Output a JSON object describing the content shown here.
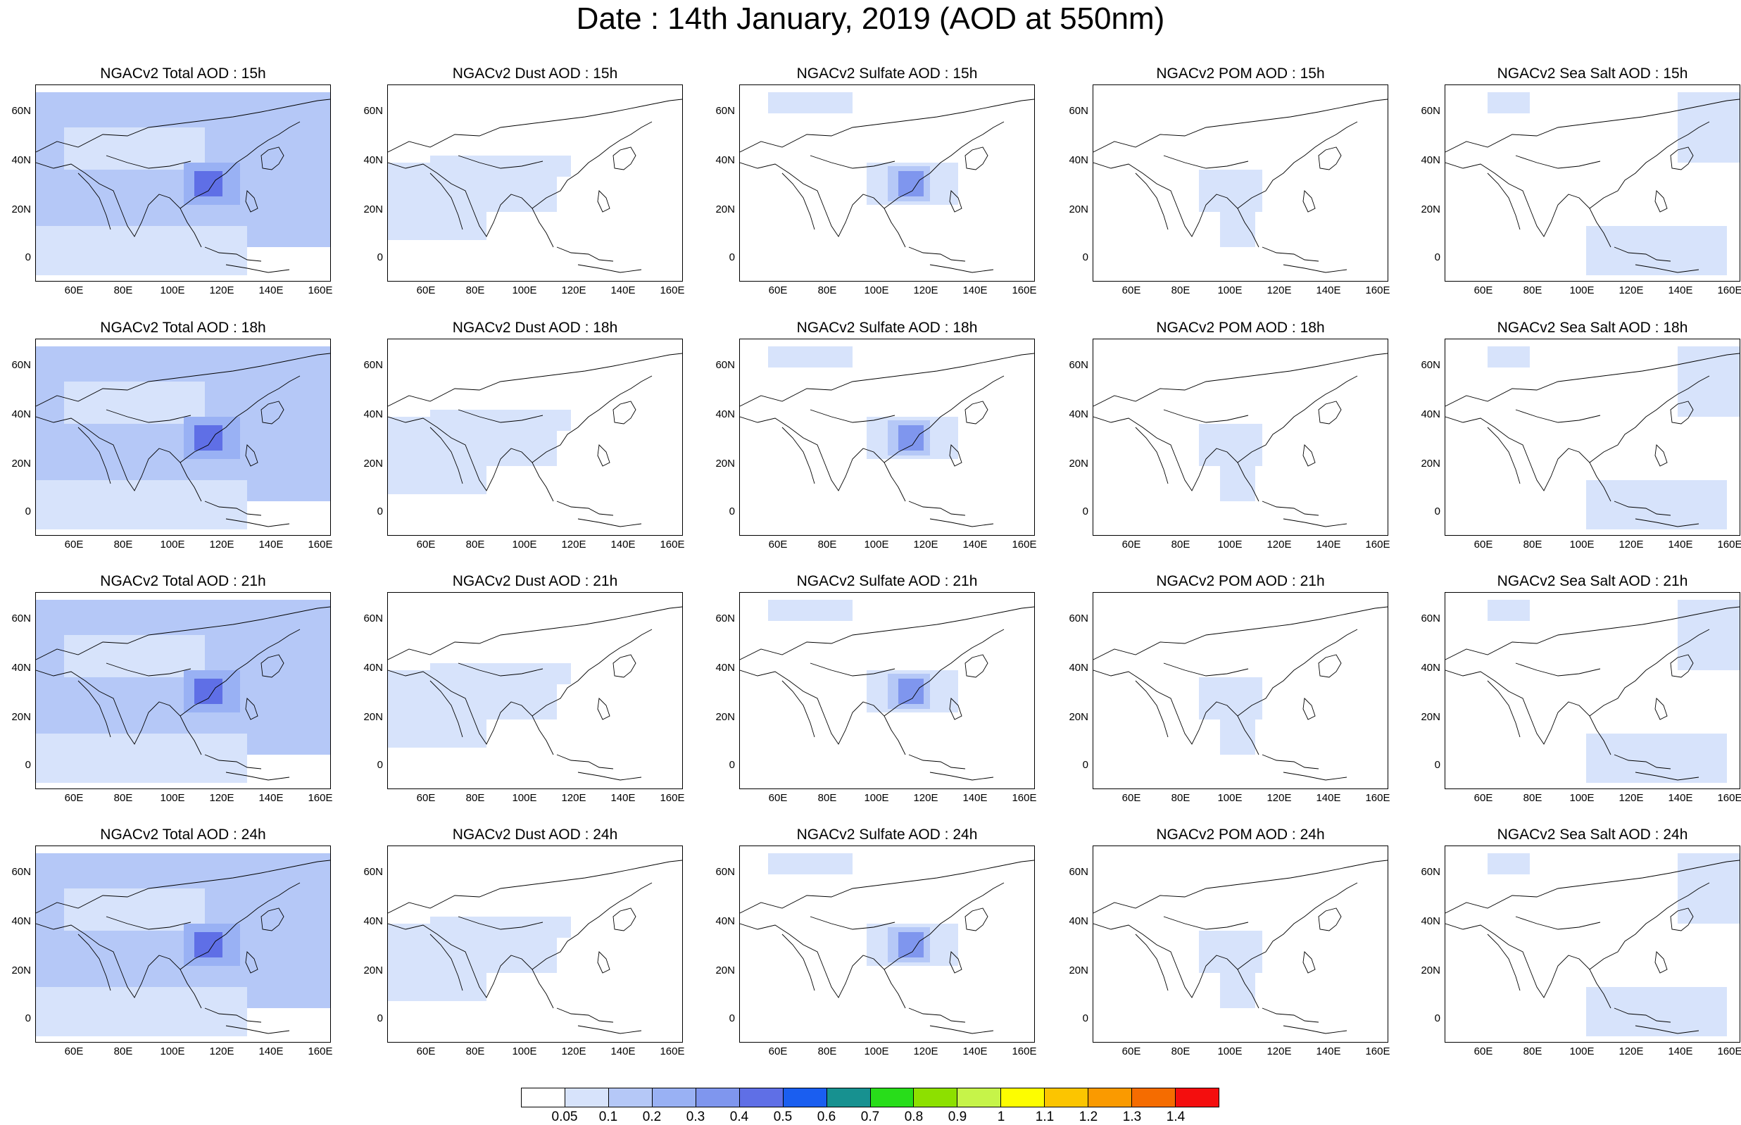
{
  "title": "Date : 14th January, 2019 (AOD at 550nm)",
  "lat_ticks": [
    "60N",
    "40N",
    "20N",
    "0"
  ],
  "lon_ticks": [
    "60E",
    "80E",
    "100E",
    "120E",
    "140E",
    "160E"
  ],
  "panels": [
    {
      "title": "NGACv2 Total AOD : 15h",
      "type": "total"
    },
    {
      "title": "NGACv2 Dust AOD : 15h",
      "type": "dust"
    },
    {
      "title": "NGACv2 Sulfate AOD : 15h",
      "type": "sulfate"
    },
    {
      "title": "NGACv2 POM AOD : 15h",
      "type": "pom"
    },
    {
      "title": "NGACv2 Sea Salt AOD : 15h",
      "type": "seasalt"
    },
    {
      "title": "NGACv2 Total AOD : 18h",
      "type": "total"
    },
    {
      "title": "NGACv2 Dust AOD : 18h",
      "type": "dust"
    },
    {
      "title": "NGACv2 Sulfate AOD : 18h",
      "type": "sulfate"
    },
    {
      "title": "NGACv2 POM AOD : 18h",
      "type": "pom"
    },
    {
      "title": "NGACv2 Sea Salt AOD : 18h",
      "type": "seasalt"
    },
    {
      "title": "NGACv2 Total AOD : 21h",
      "type": "total"
    },
    {
      "title": "NGACv2 Dust AOD : 21h",
      "type": "dust"
    },
    {
      "title": "NGACv2 Sulfate AOD : 21h",
      "type": "sulfate"
    },
    {
      "title": "NGACv2 POM AOD : 21h",
      "type": "pom"
    },
    {
      "title": "NGACv2 Sea Salt AOD : 21h",
      "type": "seasalt"
    },
    {
      "title": "NGACv2 Total AOD : 24h",
      "type": "total"
    },
    {
      "title": "NGACv2 Dust AOD : 24h",
      "type": "dust"
    },
    {
      "title": "NGACv2 Sulfate AOD : 24h",
      "type": "sulfate"
    },
    {
      "title": "NGACv2 POM AOD : 24h",
      "type": "pom"
    },
    {
      "title": "NGACv2 Sea Salt  AOD : 24h",
      "type": "seasalt"
    }
  ],
  "colorbar": {
    "labels": [
      "0.05",
      "0.1",
      "0.2",
      "0.3",
      "0.4",
      "0.5",
      "0.6",
      "0.7",
      "0.8",
      "0.9",
      "1",
      "1.1",
      "1.2",
      "1.3",
      "1.4"
    ],
    "colors": [
      "#ffffff",
      "#d7e3fb",
      "#b5c8f7",
      "#99b1f4",
      "#7f96ee",
      "#5f6fe6",
      "#1a5ef0",
      "#179190",
      "#28dd1a",
      "#8de000",
      "#c6f449",
      "#fdfd00",
      "#fcc500",
      "#fa9a00",
      "#f56c00",
      "#f40e0e"
    ]
  }
}
